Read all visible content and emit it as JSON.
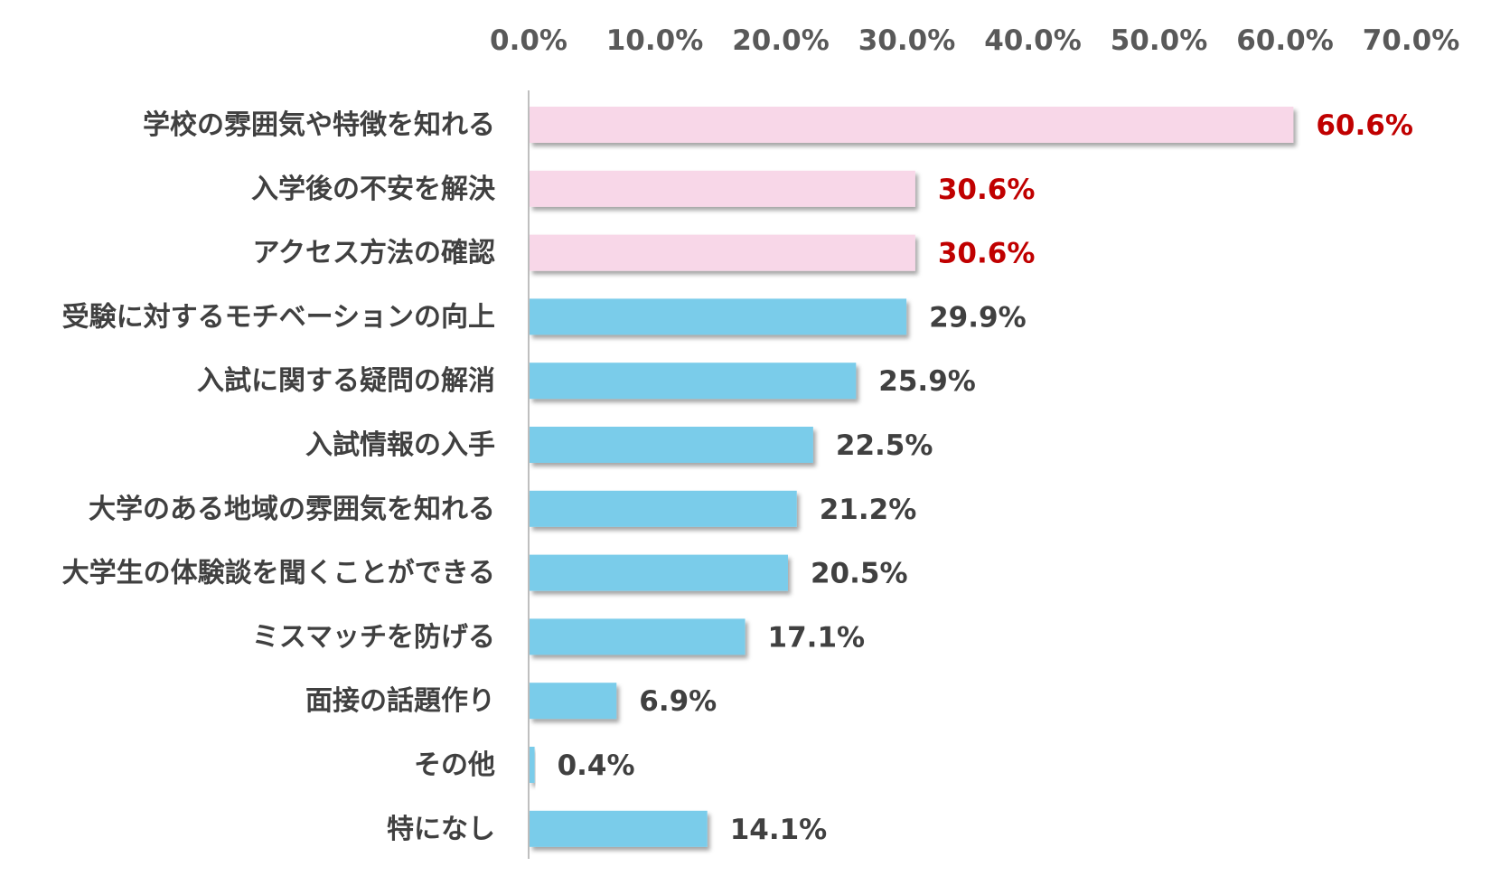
{
  "chart_data": {
    "type": "bar",
    "orientation": "horizontal",
    "title": "",
    "xlabel": "",
    "ylabel": "",
    "xlim": [
      0,
      70
    ],
    "x_ticks": [
      "0.0%",
      "10.0%",
      "20.0%",
      "30.0%",
      "40.0%",
      "50.0%",
      "60.0%",
      "70.0%"
    ],
    "x_tick_values": [
      0,
      10,
      20,
      30,
      40,
      50,
      60,
      70
    ],
    "x_axis_position": "top",
    "grid": false,
    "legend": "none",
    "categories": [
      "学校の雰囲気や特徴を知れる",
      "入学後の不安を解決",
      "アクセス方法の確認",
      "受験に対するモチベーションの向上",
      "入試に関する疑問の解消",
      "入試情報の入手",
      "大学のある地域の雰囲気を知れる",
      "大学生の体験談を聞くことができる",
      "ミスマッチを防げる",
      "面接の話題作り",
      "その他",
      "特になし"
    ],
    "values": [
      60.6,
      30.6,
      30.6,
      29.9,
      25.9,
      22.5,
      21.2,
      20.5,
      17.1,
      6.9,
      0.4,
      14.1
    ],
    "value_labels": [
      "60.6%",
      "30.6%",
      "30.6%",
      "29.9%",
      "25.9%",
      "22.5%",
      "21.2%",
      "20.5%",
      "17.1%",
      "6.9%",
      "0.4%",
      "14.1%"
    ],
    "highlighted": [
      true,
      true,
      true,
      false,
      false,
      false,
      false,
      false,
      false,
      false,
      false,
      false
    ],
    "colors": {
      "highlight_bar": "#f8d7e8",
      "normal_bar": "#7accea",
      "highlight_label": "#c00000",
      "normal_label": "#404040",
      "axis_line": "#bfbfbf",
      "tick_label": "#595959",
      "category_label": "#404040"
    }
  }
}
